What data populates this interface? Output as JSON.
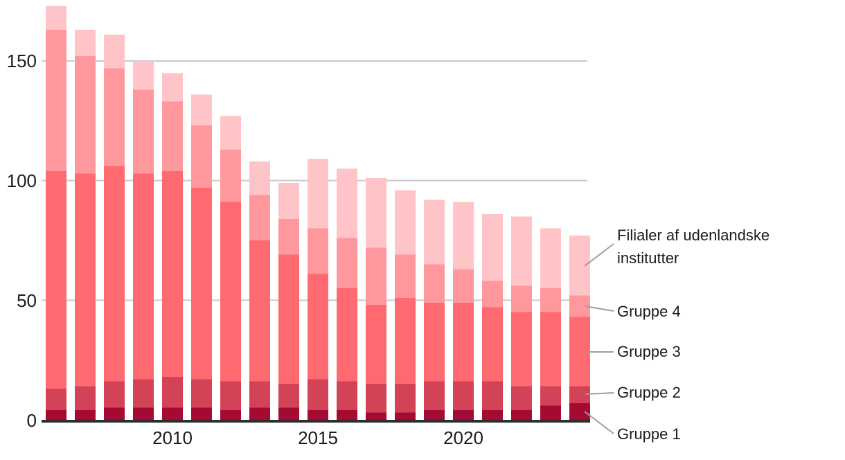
{
  "chart_data": {
    "type": "bar",
    "stacked": true,
    "title": "",
    "xlabel": "",
    "ylabel": "",
    "x": [
      2006,
      2007,
      2008,
      2009,
      2010,
      2011,
      2012,
      2013,
      2014,
      2015,
      2016,
      2017,
      2018,
      2019,
      2020,
      2021,
      2022,
      2023,
      2024
    ],
    "series": [
      {
        "name": "Gruppe 1",
        "color": "#a50a32",
        "values": [
          4,
          4,
          5,
          5,
          5,
          5,
          4,
          5,
          5,
          4,
          4,
          3,
          3,
          4,
          4,
          4,
          4,
          6,
          7
        ]
      },
      {
        "name": "Gruppe 2",
        "color": "#d24358",
        "values": [
          9,
          10,
          11,
          12,
          13,
          12,
          12,
          11,
          10,
          13,
          12,
          12,
          12,
          12,
          12,
          12,
          10,
          8,
          7
        ]
      },
      {
        "name": "Gruppe 3",
        "color": "#ff6a70",
        "values": [
          91,
          89,
          90,
          86,
          86,
          80,
          75,
          59,
          54,
          44,
          39,
          33,
          36,
          33,
          33,
          31,
          31,
          31,
          29
        ]
      },
      {
        "name": "Gruppe 4",
        "color": "#ff989d",
        "values": [
          59,
          49,
          41,
          35,
          29,
          26,
          22,
          19,
          15,
          19,
          21,
          24,
          18,
          16,
          14,
          11,
          11,
          10,
          9
        ]
      },
      {
        "name": "Filialer af udenlandske institutter",
        "color": "#ffc4c7",
        "values": [
          10,
          11,
          14,
          12,
          12,
          13,
          14,
          14,
          15,
          29,
          29,
          29,
          27,
          27,
          28,
          28,
          29,
          25,
          25
        ]
      }
    ],
    "totals": [
      173,
      163,
      161,
      150,
      145,
      136,
      127,
      108,
      99,
      109,
      105,
      101,
      96,
      92,
      91,
      86,
      85,
      80,
      77
    ],
    "ylim": [
      0,
      175
    ],
    "y_ticks": [
      0,
      50,
      100,
      150
    ],
    "x_tick_years": [
      2010,
      2015,
      2020
    ],
    "grid": "horizontal",
    "legend_position": "right-annotated"
  },
  "y_axis": {
    "labels": [
      "0",
      "50",
      "100",
      "150"
    ]
  },
  "x_axis": {
    "labels": [
      "2010",
      "2015",
      "2020"
    ]
  },
  "legend": {
    "filialer_line1": "Filialer af udenlandske",
    "filialer_line2": "institutter",
    "gruppe4": "Gruppe 4",
    "gruppe3": "Gruppe 3",
    "gruppe2": "Gruppe 2",
    "gruppe1": "Gruppe 1"
  },
  "colors": {
    "grid": "#cacaca",
    "axis": "#2e2e31",
    "leader": "#9e9e9e",
    "text": "#1b1b1b"
  }
}
